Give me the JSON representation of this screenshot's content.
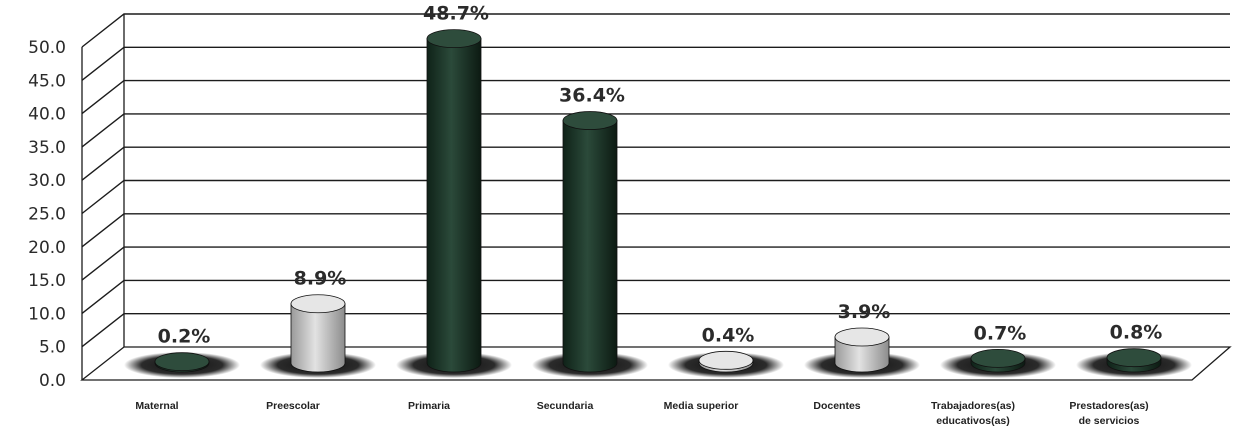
{
  "chart_data": {
    "type": "bar",
    "categories": [
      "Maternal",
      "Preescolar",
      "Primaria",
      "Secundaria",
      "Media superior",
      "Docentes",
      "Trabajadores(as) educativos(as)",
      "Prestadores(as) de servicios"
    ],
    "values": [
      0.2,
      8.9,
      48.7,
      36.4,
      0.4,
      3.9,
      0.7,
      0.8
    ],
    "data_labels": [
      "0.2%",
      "8.9%",
      "48.7%",
      "36.4%",
      "0.4%",
      "3.9%",
      "0.7%",
      "0.8%"
    ],
    "y_ticks": [
      "0.0",
      "5.0",
      "10.0",
      "15.0",
      "20.0",
      "25.0",
      "30.0",
      "35.0",
      "40.0",
      "45.0",
      "50.0"
    ],
    "ylim": [
      0,
      50
    ],
    "title": "",
    "xlabel": "",
    "ylabel": "",
    "grid": true,
    "style": "3d-cylinder",
    "colors": {
      "dark_bar": "#1f3a2c",
      "light_bar": "#c9c9c9",
      "grid": "#1c1c1c",
      "text": "#2a2a2a"
    }
  }
}
